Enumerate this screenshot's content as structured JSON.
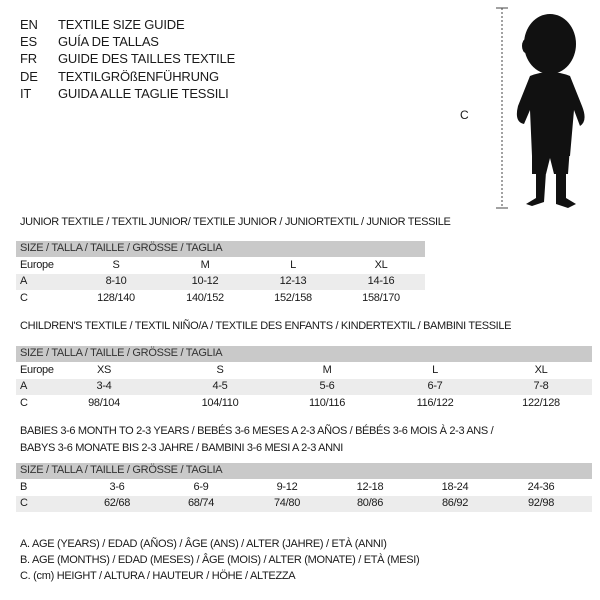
{
  "title_lines": [
    {
      "code": "EN",
      "text": "TEXTILE SIZE GUIDE"
    },
    {
      "code": "ES",
      "text": "GUÍA DE TALLAS"
    },
    {
      "code": "FR",
      "text": "GUIDE DES TAILLES TEXTILE"
    },
    {
      "code": "DE",
      "text": "TEXTILGRÖßENFÜHRUNG"
    },
    {
      "code": "IT",
      "text": "GUIDA ALLE TAGLIE TESSILI"
    }
  ],
  "figure": {
    "measure_label": "C"
  },
  "size_header": "SIZE / TALLA / TAILLE / GRÖSSE / TAGLIA",
  "junior": {
    "title": "JUNIOR TEXTILE / TEXTIL JUNIOR/ TEXTILE JUNIOR / JUNIORTEXTIL / JUNIOR TESSILE",
    "rows": [
      {
        "label": "Europe",
        "values": [
          "S",
          "M",
          "L",
          "XL"
        ]
      },
      {
        "label": "A",
        "values": [
          "8-10",
          "10-12",
          "12-13",
          "14-16"
        ]
      },
      {
        "label": "C",
        "values": [
          "128/140",
          "140/152",
          "152/158",
          "158/170"
        ]
      }
    ]
  },
  "children": {
    "title": "CHILDREN'S TEXTILE / TEXTIL NIÑO/A / TEXTILE DES ENFANTS / KINDERTEXTIL / BAMBINI TESSILE",
    "rows": [
      {
        "label": "Europe",
        "values": [
          "XS",
          "S",
          "M",
          "L",
          "XL"
        ]
      },
      {
        "label": "A",
        "values": [
          "3-4",
          "4-5",
          "5-6",
          "6-7",
          "7-8"
        ]
      },
      {
        "label": "C",
        "values": [
          "98/104",
          "104/110",
          "110/116",
          "116/122",
          "122/128"
        ]
      }
    ]
  },
  "babies": {
    "title_line1": "BABIES 3-6 MONTH TO 2-3 YEARS / BEBÉS 3-6 MESES A 2-3 AÑOS / BÉBÉS 3-6 MOIS À 2-3 ANS /",
    "title_line2": "BABYS 3-6 MONATE BIS 2-3 JAHRE / BAMBINI 3-6 MESI A 2-3 ANNI",
    "rows": [
      {
        "label": "B",
        "values": [
          "3-6",
          "6-9",
          "9-12",
          "12-18",
          "18-24",
          "24-36"
        ]
      },
      {
        "label": "C",
        "values": [
          "62/68",
          "68/74",
          "74/80",
          "80/86",
          "86/92",
          "92/98"
        ]
      }
    ]
  },
  "legend": [
    "A. AGE (YEARS) / EDAD (AÑOS) / ÂGE (ANS) / ALTER (JAHRE) / ETÀ (ANNI)",
    "B. AGE (MONTHS) / EDAD (MESES) / ÂGE (MOIS) / ALTER (MONATE) / ETÀ (MESI)",
    "C. (cm) HEIGHT / ALTURA / HAUTEUR / HÖHE / ALTEZZA"
  ]
}
